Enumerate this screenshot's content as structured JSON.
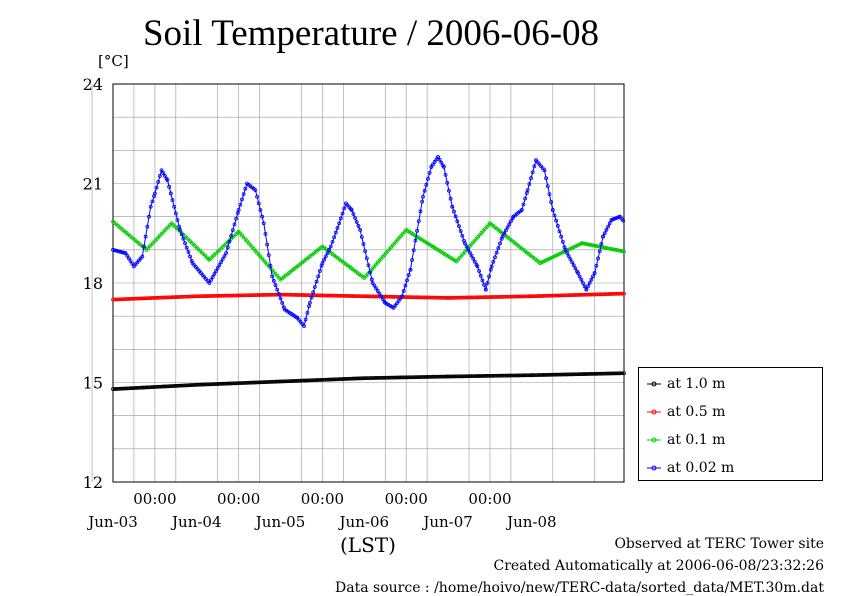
{
  "title": "Soil Temperature / 2006-06-08",
  "unit_label": "[°C]",
  "xlabel": "(LST)",
  "footer": {
    "observed": "Observed at TERC Tower site",
    "created": "Created Automatically at 2006-06-08/23:32:26",
    "source": "Data source : /home/hoivo/new/TERC-data/sorted_data/MET.30m.dat"
  },
  "chart_data": {
    "type": "line",
    "title": "Soil Temperature / 2006-06-08",
    "xlabel": "(LST)",
    "ylabel": "[°C]",
    "x_unit": "days since 2006-06-02 00:00",
    "xlim": [
      0.5,
      6.6
    ],
    "ylim": [
      12,
      24
    ],
    "y_ticks": [
      12,
      15,
      18,
      21,
      24
    ],
    "x_time_ticks": [
      {
        "x": 1.0,
        "label": "00:00"
      },
      {
        "x": 2.0,
        "label": "00:00"
      },
      {
        "x": 3.0,
        "label": "00:00"
      },
      {
        "x": 4.0,
        "label": "00:00"
      },
      {
        "x": 5.0,
        "label": "00:00"
      }
    ],
    "x_date_labels": [
      {
        "x": 0.5,
        "label": "Jun-03"
      },
      {
        "x": 1.5,
        "label": "Jun-04"
      },
      {
        "x": 2.5,
        "label": "Jun-05"
      },
      {
        "x": 3.5,
        "label": "Jun-06"
      },
      {
        "x": 4.5,
        "label": "Jun-07"
      },
      {
        "x": 5.5,
        "label": "Jun-08"
      }
    ],
    "x_minor_grid": [
      0.25,
      0.75,
      1.25,
      1.75,
      2.25,
      2.75,
      3.25,
      3.75,
      4.25,
      4.75,
      5.25,
      5.75,
      6.25
    ],
    "grid": true,
    "legend_position": "right",
    "series": [
      {
        "name": "at 1.0 m",
        "color": "#000000",
        "points": [
          [
            0.5,
            14.8
          ],
          [
            1.5,
            14.93
          ],
          [
            2.5,
            15.03
          ],
          [
            3.5,
            15.13
          ],
          [
            4.5,
            15.18
          ],
          [
            5.5,
            15.22
          ],
          [
            6.6,
            15.28
          ]
        ]
      },
      {
        "name": "at 0.5 m",
        "color": "#ff0000",
        "points": [
          [
            0.5,
            17.5
          ],
          [
            1.5,
            17.6
          ],
          [
            2.5,
            17.65
          ],
          [
            3.5,
            17.6
          ],
          [
            4.5,
            17.55
          ],
          [
            5.5,
            17.6
          ],
          [
            6.6,
            17.68
          ]
        ]
      },
      {
        "name": "at 0.1 m",
        "color": "#00cc00",
        "points": [
          [
            0.5,
            19.85
          ],
          [
            0.9,
            19.0
          ],
          [
            1.2,
            19.8
          ],
          [
            1.65,
            18.7
          ],
          [
            2.0,
            19.55
          ],
          [
            2.5,
            18.1
          ],
          [
            3.0,
            19.1
          ],
          [
            3.5,
            18.15
          ],
          [
            4.0,
            19.6
          ],
          [
            4.6,
            18.65
          ],
          [
            5.0,
            19.8
          ],
          [
            5.6,
            18.6
          ],
          [
            6.1,
            19.2
          ],
          [
            6.6,
            18.95
          ]
        ]
      },
      {
        "name": "at 0.02 m",
        "color": "#0000ff",
        "points": [
          [
            0.5,
            19.0
          ],
          [
            0.65,
            18.9
          ],
          [
            0.75,
            18.5
          ],
          [
            0.85,
            18.8
          ],
          [
            0.95,
            20.3
          ],
          [
            1.0,
            20.7
          ],
          [
            1.08,
            21.4
          ],
          [
            1.15,
            21.1
          ],
          [
            1.3,
            19.6
          ],
          [
            1.45,
            18.6
          ],
          [
            1.65,
            18.0
          ],
          [
            1.85,
            18.9
          ],
          [
            2.0,
            20.2
          ],
          [
            2.1,
            21.0
          ],
          [
            2.2,
            20.8
          ],
          [
            2.3,
            19.8
          ],
          [
            2.4,
            18.2
          ],
          [
            2.55,
            17.2
          ],
          [
            2.7,
            16.95
          ],
          [
            2.78,
            16.7
          ],
          [
            2.85,
            17.4
          ],
          [
            3.0,
            18.6
          ],
          [
            3.1,
            19.1
          ],
          [
            3.2,
            19.8
          ],
          [
            3.28,
            20.4
          ],
          [
            3.35,
            20.2
          ],
          [
            3.45,
            19.6
          ],
          [
            3.6,
            18.0
          ],
          [
            3.75,
            17.4
          ],
          [
            3.85,
            17.25
          ],
          [
            3.95,
            17.6
          ],
          [
            4.05,
            18.4
          ],
          [
            4.2,
            20.6
          ],
          [
            4.3,
            21.5
          ],
          [
            4.38,
            21.8
          ],
          [
            4.45,
            21.5
          ],
          [
            4.55,
            20.3
          ],
          [
            4.7,
            19.2
          ],
          [
            4.85,
            18.5
          ],
          [
            4.95,
            17.8
          ],
          [
            5.02,
            18.5
          ],
          [
            5.15,
            19.4
          ],
          [
            5.28,
            20.0
          ],
          [
            5.38,
            20.2
          ],
          [
            5.45,
            20.8
          ],
          [
            5.55,
            21.7
          ],
          [
            5.65,
            21.4
          ],
          [
            5.75,
            20.2
          ],
          [
            5.9,
            19.0
          ],
          [
            6.05,
            18.3
          ],
          [
            6.15,
            17.8
          ],
          [
            6.25,
            18.3
          ],
          [
            6.35,
            19.4
          ],
          [
            6.45,
            19.9
          ],
          [
            6.55,
            20.0
          ],
          [
            6.65,
            19.7
          ]
        ]
      }
    ]
  }
}
